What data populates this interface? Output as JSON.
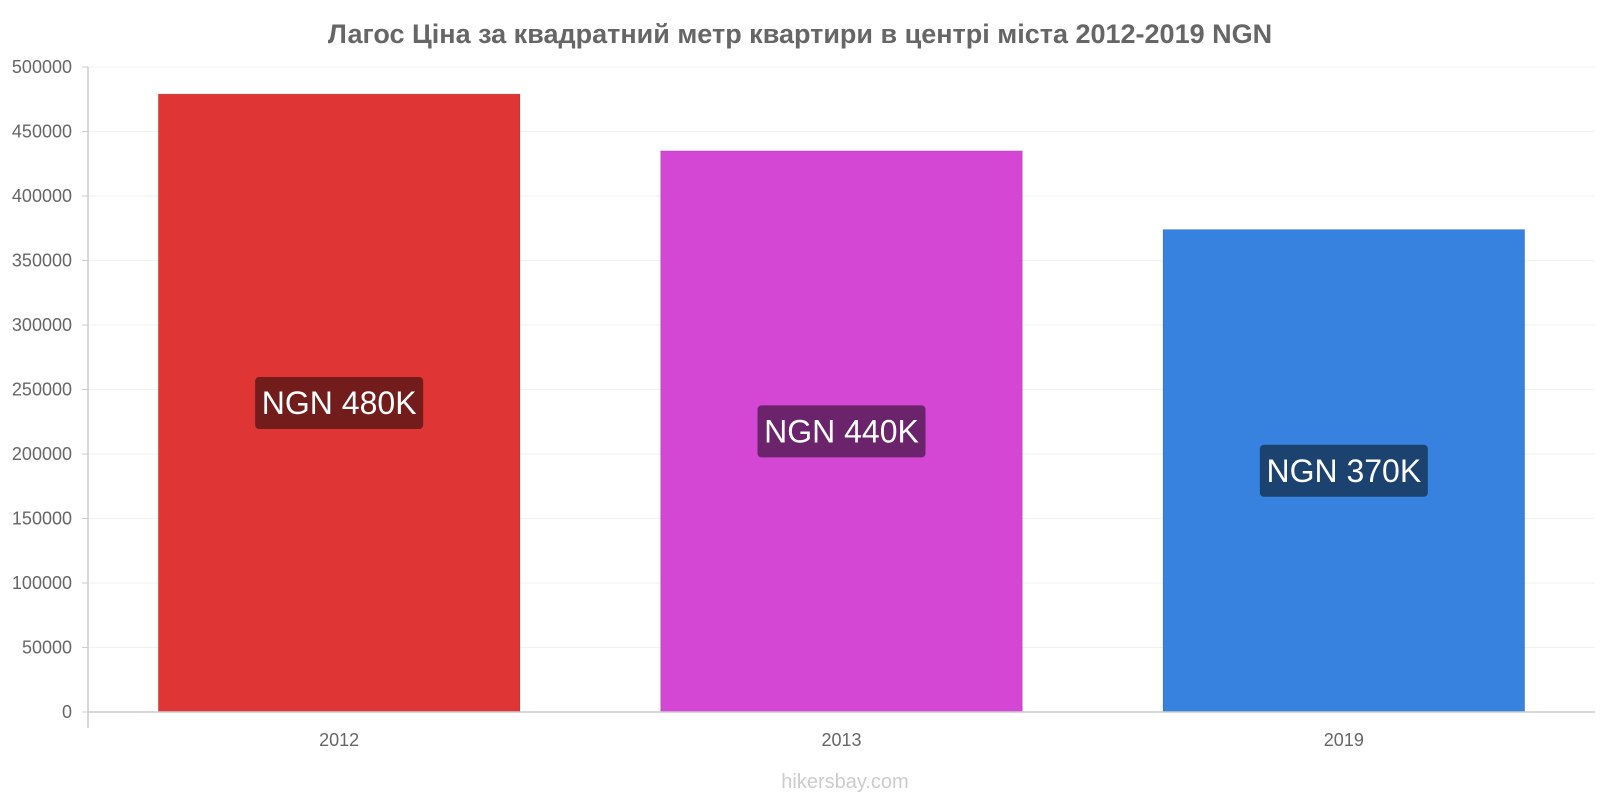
{
  "chart_data": {
    "type": "bar",
    "title": "Лагос Ціна за квадратний метр квартири в центрі міста 2012-2019 NGN",
    "categories": [
      "2012",
      "2013",
      "2019"
    ],
    "values": [
      479000,
      435000,
      374000
    ],
    "value_labels": [
      "NGN 480K",
      "NGN 440K",
      "NGN 370K"
    ],
    "bar_colors": [
      "#e03535",
      "#d446d4",
      "#3682de"
    ],
    "label_bg_colors": [
      "#721c1c",
      "#6b236b",
      "#1c426f"
    ],
    "yticks": [
      0,
      50000,
      100000,
      150000,
      200000,
      250000,
      300000,
      350000,
      400000,
      450000,
      500000
    ],
    "ylim": [
      0,
      500000
    ],
    "xlabel": "",
    "ylabel": "",
    "grid": true,
    "legend": "none"
  },
  "watermark": "hikersbay.com"
}
